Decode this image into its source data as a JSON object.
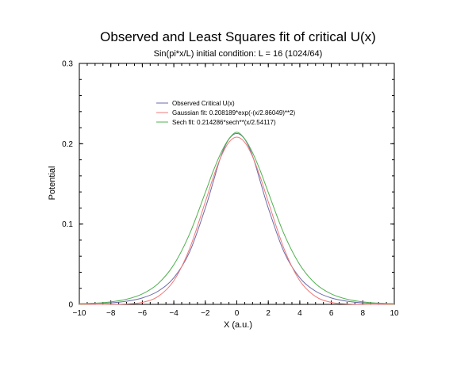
{
  "chart_data": {
    "type": "line",
    "title": "Observed and Least Squares fit of critical U(x)",
    "subtitle": "Sin(pi*x/L) initial condition:  L = 16 (1024/64)",
    "xlabel": "X (a.u.)",
    "ylabel": "Potential",
    "xlim": [
      -10,
      10
    ],
    "ylim": [
      0,
      0.3
    ],
    "x_ticks": [
      "-10",
      "-8",
      "-6",
      "-4",
      "-2",
      "0",
      "2",
      "4",
      "6",
      "8",
      "10"
    ],
    "y_ticks": [
      "0",
      "0.1",
      "0.2",
      "0.3"
    ],
    "grid": false,
    "legend_position": "top-center",
    "series": [
      {
        "name": "Observed Critical U(x)",
        "color": "#6a6aa8",
        "x": [
          -10,
          -9,
          -8,
          -7,
          -6,
          -5,
          -4,
          -3,
          -2,
          -1.5,
          -1,
          -0.5,
          0,
          0.5,
          1,
          1.5,
          2,
          3,
          4,
          5,
          6,
          7,
          8,
          9,
          10
        ],
        "y": [
          0.0008,
          0.0012,
          0.0019,
          0.0039,
          0.008,
          0.0164,
          0.0331,
          0.0652,
          0.1199,
          0.1525,
          0.1848,
          0.2058,
          0.2128,
          0.2058,
          0.1848,
          0.1525,
          0.1199,
          0.0652,
          0.0331,
          0.0164,
          0.008,
          0.0039,
          0.0019,
          0.0012,
          0.0008
        ]
      },
      {
        "name": "Gaussian fit: 0.208189*exp(-(x/2.86049)**2)",
        "color": "#f07878",
        "x": [
          -10,
          -9,
          -8,
          -7,
          -6,
          -5,
          -4,
          -3,
          -2,
          -1.5,
          -1,
          -0.5,
          0,
          0.5,
          1,
          1.5,
          2,
          3,
          4,
          5,
          6,
          7,
          8,
          9,
          10
        ],
        "y": [
          0.0,
          0.0,
          0.0001,
          0.0005,
          0.0025,
          0.0098,
          0.0295,
          0.0693,
          0.1277,
          0.158,
          0.184,
          0.2019,
          0.2082,
          0.2019,
          0.184,
          0.158,
          0.1277,
          0.0693,
          0.0295,
          0.0098,
          0.0025,
          0.0005,
          0.0001,
          0.0,
          0.0
        ]
      },
      {
        "name": "Sech fit:  0.214286*sech**(x/2.54117)",
        "color": "#50b050",
        "x": [
          -10,
          -9,
          -8,
          -7,
          -6,
          -5,
          -4,
          -3,
          -2,
          -1.5,
          -1,
          -0.5,
          0,
          0.5,
          1,
          1.5,
          2,
          3,
          4,
          5,
          6,
          7,
          8,
          9,
          10
        ],
        "y": [
          0.0008,
          0.0015,
          0.0031,
          0.0064,
          0.013,
          0.0258,
          0.0494,
          0.0876,
          0.1393,
          0.1658,
          0.1889,
          0.2061,
          0.2143,
          0.2061,
          0.1889,
          0.1658,
          0.1393,
          0.0876,
          0.0494,
          0.0258,
          0.013,
          0.0064,
          0.0031,
          0.0015,
          0.0008
        ]
      }
    ]
  }
}
